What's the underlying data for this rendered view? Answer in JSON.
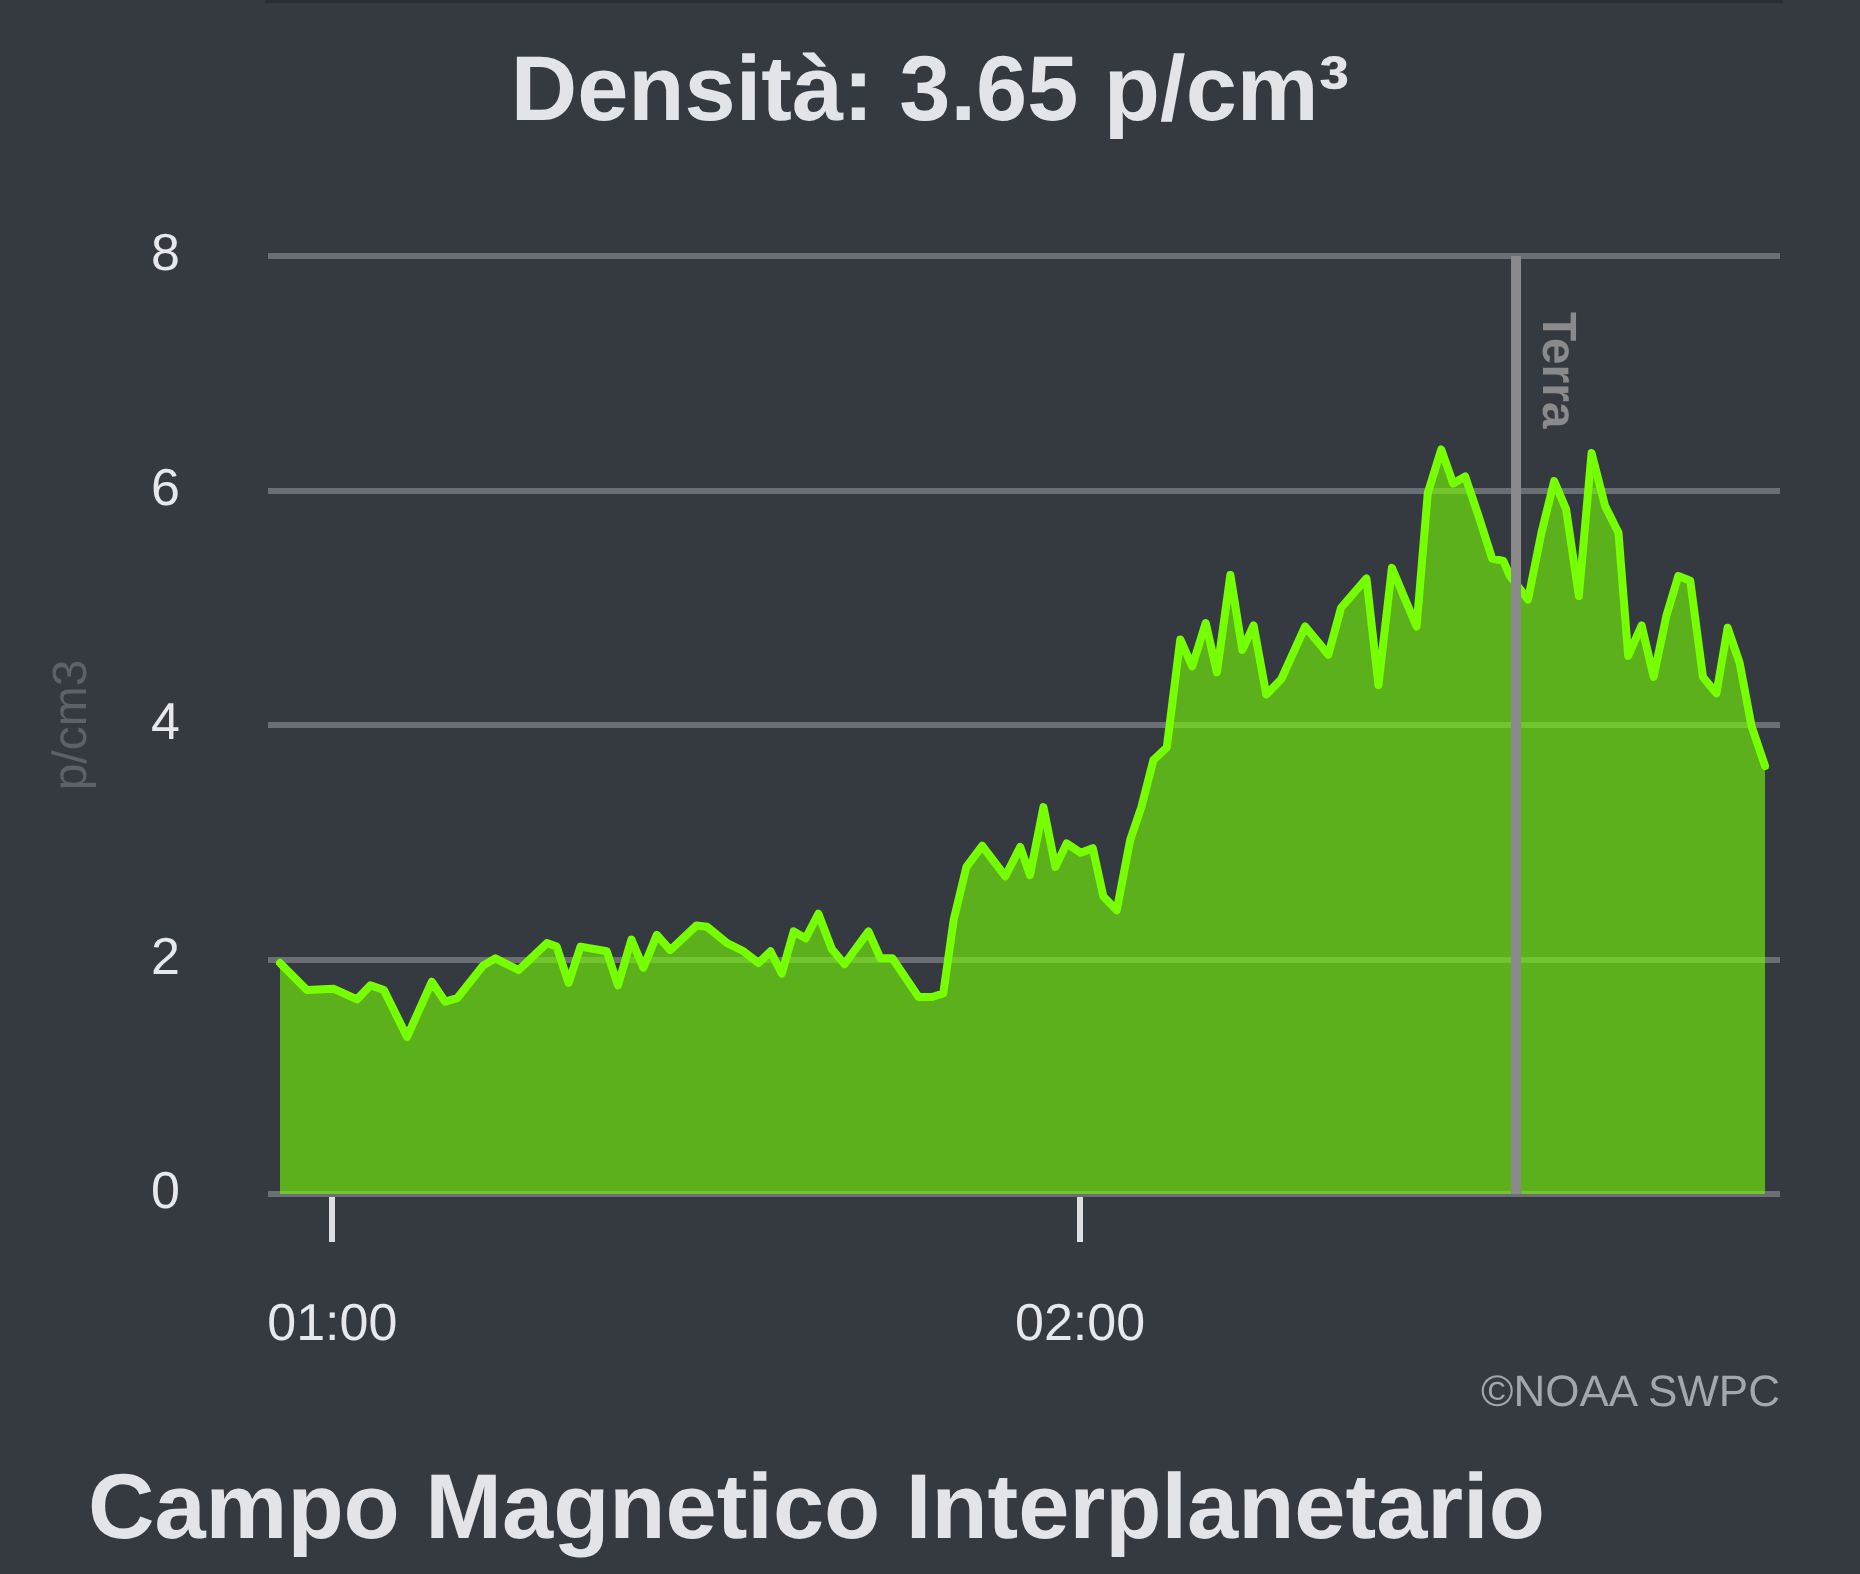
{
  "chart_data": {
    "type": "area",
    "title": "Densità: 3.65 p/cm³",
    "ylabel": "p/cm3",
    "annotations": [
      "©NOAA SWPC",
      "Campo Magnetico Interplanetario"
    ],
    "x": [
      0.93,
      0.966,
      1.002,
      1.033,
      1.051,
      1.069,
      1.1,
      1.133,
      1.151,
      1.167,
      1.202,
      1.218,
      1.249,
      1.287,
      1.3,
      1.316,
      1.332,
      1.367,
      1.382,
      1.4,
      1.416,
      1.434,
      1.452,
      1.487,
      1.501,
      1.528,
      1.55,
      1.57,
      1.586,
      1.601,
      1.617,
      1.633,
      1.65,
      1.668,
      1.685,
      1.717,
      1.733,
      1.749,
      1.784,
      1.802,
      1.817,
      1.831,
      1.848,
      1.869,
      1.9,
      1.92,
      1.933,
      1.951,
      1.967,
      1.982,
      2.001,
      2.017,
      2.031,
      2.049,
      2.067,
      2.082,
      2.098,
      2.116,
      2.134,
      2.15,
      2.168,
      2.183,
      2.201,
      2.217,
      2.232,
      2.249,
      2.269,
      2.301,
      2.332,
      2.349,
      2.383,
      2.399,
      2.417,
      2.45,
      2.465,
      2.483,
      2.499,
      2.515,
      2.533,
      2.551,
      2.566,
      2.575,
      2.599,
      2.617,
      2.634,
      2.65,
      2.667,
      2.684,
      2.702,
      2.72,
      2.733,
      2.751,
      2.767,
      2.784,
      2.8,
      2.816,
      2.833,
      2.851,
      2.866,
      2.882,
      2.898,
      2.916
    ],
    "values": [
      1.97,
      1.74,
      1.75,
      1.66,
      1.78,
      1.74,
      1.34,
      1.81,
      1.64,
      1.67,
      1.95,
      2.01,
      1.91,
      2.14,
      2.11,
      1.8,
      2.11,
      2.07,
      1.78,
      2.17,
      1.93,
      2.21,
      2.08,
      2.29,
      2.28,
      2.14,
      2.07,
      1.97,
      2.07,
      1.88,
      2.24,
      2.18,
      2.39,
      2.09,
      1.96,
      2.24,
      2.01,
      2.01,
      1.68,
      1.68,
      1.71,
      2.34,
      2.79,
      2.97,
      2.71,
      2.96,
      2.72,
      3.3,
      2.79,
      2.99,
      2.91,
      2.95,
      2.54,
      2.42,
      3.02,
      3.3,
      3.7,
      3.81,
      4.73,
      4.5,
      4.87,
      4.45,
      5.28,
      4.64,
      4.85,
      4.26,
      4.39,
      4.84,
      4.6,
      5.0,
      5.25,
      4.34,
      5.34,
      4.84,
      5.98,
      6.35,
      6.06,
      6.12,
      5.78,
      5.42,
      5.4,
      5.27,
      5.07,
      5.64,
      6.08,
      5.84,
      5.1,
      6.32,
      5.87,
      5.64,
      4.59,
      4.85,
      4.41,
      4.93,
      5.27,
      5.23,
      4.41,
      4.27,
      4.83,
      4.53,
      3.99,
      3.65
    ],
    "color": "#76ff03",
    "xlim": [
      0.914,
      2.936
    ],
    "xticks": [
      {
        "value": 1,
        "label": "01:00"
      },
      {
        "value": 2,
        "label": "02:00"
      }
    ],
    "ylim": [
      0,
      8
    ],
    "yticks": [
      0,
      2,
      4,
      6,
      8
    ],
    "grid": "y",
    "legend": false,
    "marker": "none",
    "line_style": "solid",
    "ref_lines": [
      {
        "axis": "x",
        "value": 2.583,
        "label": "Terra",
        "color": "#8a8a8a"
      }
    ]
  }
}
